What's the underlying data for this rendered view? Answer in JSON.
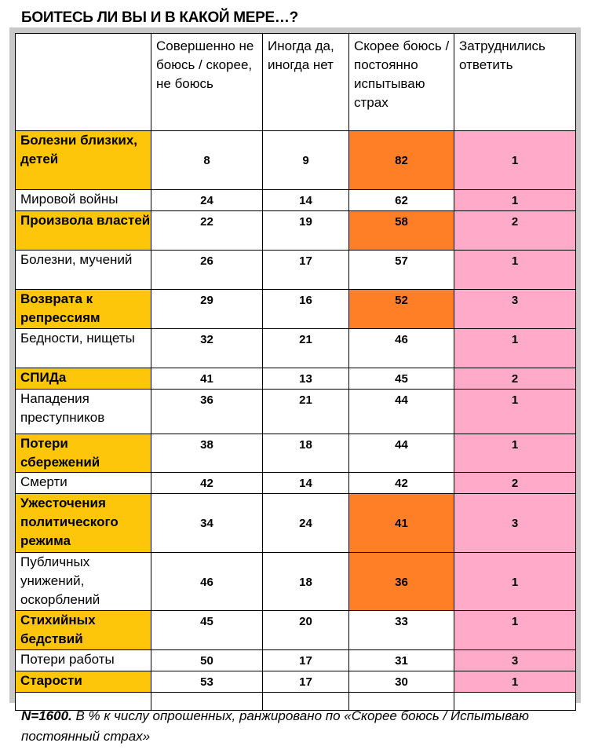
{
  "title": "БОИТЕСЬ ЛИ ВЫ И В КАКОЙ МЕРЕ…?",
  "headers": [
    "",
    "Совершенно не боюсь / скорее, не боюсь",
    "Иногда да, иногда нет",
    "Скорее боюсь / постоянно испытываю страх",
    "Затруднились ответить"
  ],
  "rows": [
    {
      "label": "Болезни близких, детей",
      "values": [
        "8",
        "9",
        "82",
        "1"
      ]
    },
    {
      "label": "Мировой войны",
      "values": [
        "24",
        "14",
        "62",
        "1"
      ]
    },
    {
      "label": "Произвола властей",
      "values": [
        "22",
        "19",
        "58",
        "2"
      ]
    },
    {
      "label": "Болезни, мучений",
      "values": [
        "26",
        "17",
        "57",
        "1"
      ]
    },
    {
      "label": "Возврата к репрессиям",
      "values": [
        "29",
        "16",
        "52",
        "3"
      ]
    },
    {
      "label": "Бедности, нищеты",
      "values": [
        "32",
        "21",
        "46",
        "1"
      ]
    },
    {
      "label": "СПИДа",
      "values": [
        "41",
        "13",
        "45",
        "2"
      ]
    },
    {
      "label": "Нападения преступников",
      "values": [
        "36",
        "21",
        "44",
        "1"
      ]
    },
    {
      "label": "Потери сбережений",
      "values": [
        "38",
        "18",
        "44",
        "1"
      ]
    },
    {
      "label": "Смерти",
      "values": [
        "42",
        "14",
        "42",
        "2"
      ]
    },
    {
      "label": "Ужесточения политического режима",
      "values": [
        "34",
        "24",
        "41",
        "3"
      ]
    },
    {
      "label": "Публичных унижений, оскорблений",
      "values": [
        "46",
        "18",
        "36",
        "1"
      ]
    },
    {
      "label": "Стихийных бедствий",
      "values": [
        "45",
        "20",
        "33",
        "1"
      ]
    },
    {
      "label": "Потери работы",
      "values": [
        "50",
        "17",
        "31",
        "3"
      ]
    },
    {
      "label": "Старости",
      "values": [
        "53",
        "17",
        "30",
        "1"
      ]
    }
  ],
  "highlight": {
    "label_rows": [
      0,
      2,
      4,
      6,
      8,
      10,
      12,
      14
    ],
    "orange_rows": [
      0,
      2,
      4,
      10,
      11
    ],
    "middle_rows": [
      0,
      10,
      11
    ],
    "heights": [
      75,
      25,
      50,
      50,
      50,
      50,
      25,
      57,
      48,
      25,
      75,
      74,
      50,
      25,
      25
    ]
  },
  "colors": {
    "label": "#fdc60b",
    "strong": "#ff7f27",
    "unsure": "#ffaac8"
  },
  "note": {
    "bold": "N=1600.",
    "text": " В % к числу опрошенных, ранжировано по «Скорее боюсь / Испытываю постоянный страх»"
  }
}
